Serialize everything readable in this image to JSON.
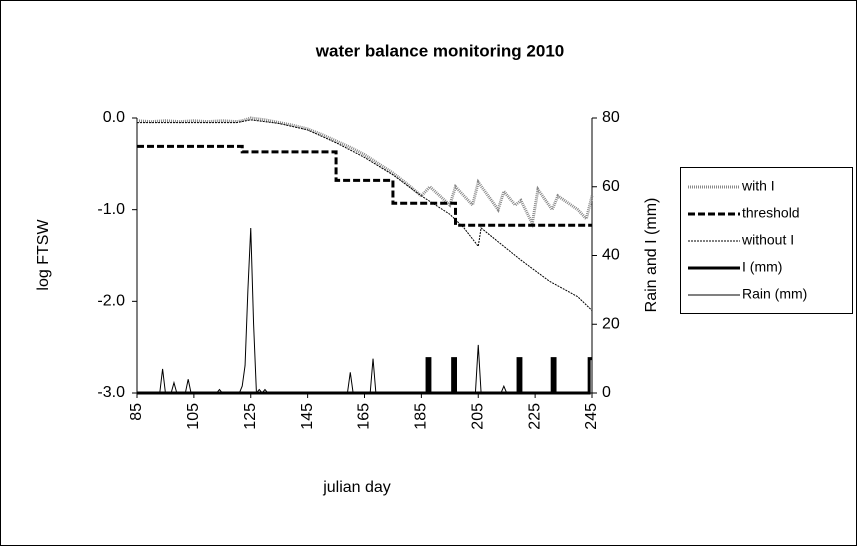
{
  "chart_data": {
    "type": "line",
    "title": "water balance monitoring 2010",
    "xlabel": "julian day",
    "ylabel": "log FTSW",
    "y2label": "Rain and I (mm)",
    "xlim": [
      85,
      245
    ],
    "xticks": [
      85,
      105,
      125,
      145,
      165,
      185,
      205,
      225,
      245
    ],
    "ylim": [
      -3,
      0
    ],
    "yticks": [
      {
        "value": 0,
        "label": "0.0"
      },
      {
        "value": -1,
        "label": "-1.0"
      },
      {
        "value": -2,
        "label": "-2.0"
      },
      {
        "value": -3,
        "label": "-3.0"
      }
    ],
    "y2lim": [
      0,
      80
    ],
    "y2ticks": [
      0,
      20,
      40,
      60,
      80
    ],
    "legend": "right",
    "series": [
      {
        "name": "with I",
        "color": "#888888",
        "width": 3,
        "dash": "1 1",
        "axis": "y",
        "x": [
          85,
          90,
          95,
          100,
          105,
          110,
          115,
          120,
          122,
          125,
          130,
          135,
          140,
          145,
          150,
          155,
          160,
          165,
          170,
          175,
          180,
          185,
          188,
          195,
          197,
          203,
          205,
          212,
          214,
          218,
          220,
          224,
          226,
          231,
          233,
          240,
          243,
          245
        ],
        "values": [
          -0.03,
          -0.04,
          -0.03,
          -0.04,
          -0.03,
          -0.04,
          -0.03,
          -0.04,
          -0.03,
          0.0,
          -0.02,
          -0.05,
          -0.08,
          -0.12,
          -0.18,
          -0.25,
          -0.32,
          -0.4,
          -0.5,
          -0.6,
          -0.72,
          -0.85,
          -0.75,
          -0.95,
          -0.75,
          -0.95,
          -0.7,
          -1.0,
          -0.8,
          -0.95,
          -0.9,
          -1.15,
          -0.78,
          -1.0,
          -0.85,
          -1.0,
          -1.1,
          -0.85
        ]
      },
      {
        "name": "threshold",
        "color": "#000000",
        "width": 3,
        "dash": "7 3",
        "axis": "y",
        "x": [
          85,
          122,
          122,
          155,
          155,
          175,
          175,
          197,
          197,
          245
        ],
        "values": [
          -0.31,
          -0.31,
          -0.37,
          -0.37,
          -0.68,
          -0.68,
          -0.93,
          -0.93,
          -1.17,
          -1.17
        ]
      },
      {
        "name": "without I",
        "color": "#000000",
        "width": 1,
        "dash": "2 1",
        "axis": "y",
        "x": [
          85,
          120,
          125,
          135,
          145,
          155,
          165,
          175,
          185,
          195,
          200,
          205,
          206,
          210,
          220,
          230,
          240,
          245
        ],
        "values": [
          -0.05,
          -0.05,
          -0.02,
          -0.06,
          -0.13,
          -0.27,
          -0.43,
          -0.62,
          -0.85,
          -1.05,
          -1.2,
          -1.4,
          -1.2,
          -1.3,
          -1.55,
          -1.78,
          -1.95,
          -2.1
        ]
      },
      {
        "name": "I (mm)",
        "color": "#000000",
        "width": 3,
        "dash": "none",
        "axis": "y2",
        "x": [
          85,
          187,
          187,
          188,
          188,
          196,
          196,
          197,
          197,
          219,
          219,
          220,
          220,
          231,
          231,
          232,
          232,
          244,
          244,
          245
        ],
        "values": [
          0,
          0,
          10,
          10,
          0,
          0,
          10,
          10,
          0,
          0,
          10,
          10,
          0,
          0,
          10,
          10,
          0,
          0,
          10,
          10
        ]
      },
      {
        "name": "Rain (mm)",
        "color": "#000000",
        "width": 1,
        "dash": "none",
        "axis": "y2",
        "x": [
          85,
          93,
          94,
          95,
          97,
          98,
          99,
          102,
          103,
          104,
          113,
          114,
          115,
          121,
          122,
          123,
          124,
          125,
          126,
          127,
          128,
          129,
          130,
          131,
          159,
          160,
          161,
          167,
          168,
          169,
          204,
          205,
          206,
          213,
          214,
          215,
          245
        ],
        "values": [
          0,
          0,
          7,
          0,
          0,
          3,
          0,
          0,
          4,
          0,
          0,
          1,
          0,
          0,
          2,
          8,
          30,
          48,
          20,
          0,
          1,
          0,
          1,
          0,
          0,
          6,
          0,
          0,
          10,
          0,
          0,
          14,
          0,
          0,
          2,
          0,
          0
        ]
      }
    ]
  }
}
